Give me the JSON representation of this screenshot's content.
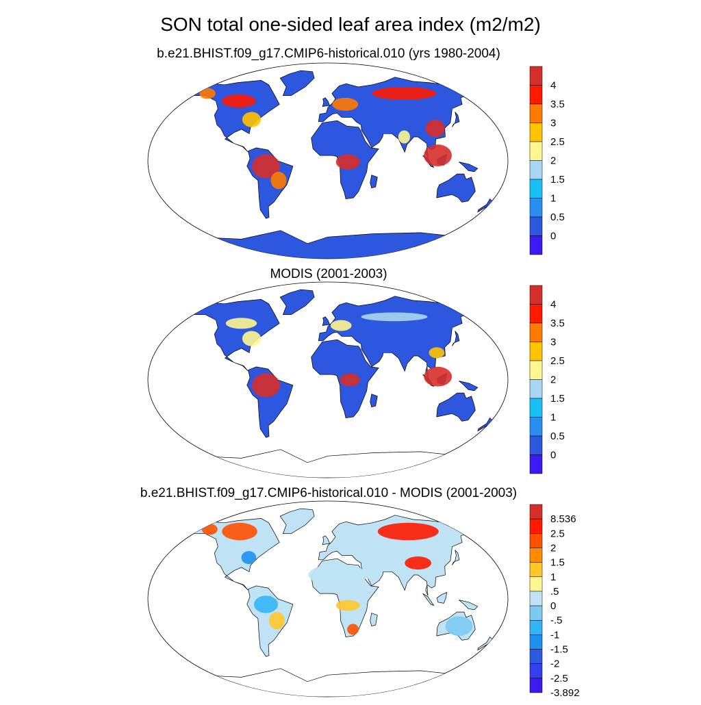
{
  "title": "SON total one-sided leaf area index (m2/m2)",
  "panels": [
    {
      "id": "model",
      "title": "b.e21.BHIST.f09_g17.CMIP6-historical.010 (yrs 1980-2004)",
      "colorbar": {
        "tick_labels": [
          "4",
          "3.5",
          "3",
          "2.5",
          "2",
          "1.5",
          "1",
          "0.5",
          "0"
        ],
        "colors_top_to_bottom": [
          "#d62f2a",
          "#ff1a00",
          "#ff7a00",
          "#ffc300",
          "#fff68f",
          "#a8d6f0",
          "#19bff2",
          "#2a8ef0",
          "#2d57de",
          "#3a1af0"
        ]
      }
    },
    {
      "id": "modis",
      "title": "MODIS (2001-2003)",
      "colorbar": {
        "tick_labels": [
          "4",
          "3.5",
          "3",
          "2.5",
          "2",
          "1.5",
          "1",
          "0.5",
          "0"
        ],
        "colors_top_to_bottom": [
          "#d62f2a",
          "#ff1a00",
          "#ff7a00",
          "#ffc300",
          "#fff68f",
          "#a8d6f0",
          "#19bff2",
          "#2a8ef0",
          "#2d57de",
          "#3a1af0"
        ]
      }
    },
    {
      "id": "difference",
      "title": "b.e21.BHIST.f09_g17.CMIP6-historical.010 - MODIS (2001-2003)",
      "colorbar": {
        "tick_labels": [
          "8.536",
          "2.5",
          "2",
          "1.5",
          "1",
          ".5",
          "0",
          "-.5",
          "-1",
          "-1.5",
          "-2",
          "-2.5",
          "-3.892"
        ],
        "colors_top_to_bottom": [
          "#d62f2a",
          "#ff1a00",
          "#ff5000",
          "#ff8c00",
          "#ffc72c",
          "#fff68f",
          "#bfe3f5",
          "#7ccaf2",
          "#35b4f5",
          "#1e90f0",
          "#2d5ae0",
          "#3440ee",
          "#3a1af0"
        ]
      }
    }
  ],
  "colors": {
    "ocean": "#ffffff",
    "land_low": "#2d57de",
    "land_high": "#d62f2a",
    "coast": "#000000"
  }
}
